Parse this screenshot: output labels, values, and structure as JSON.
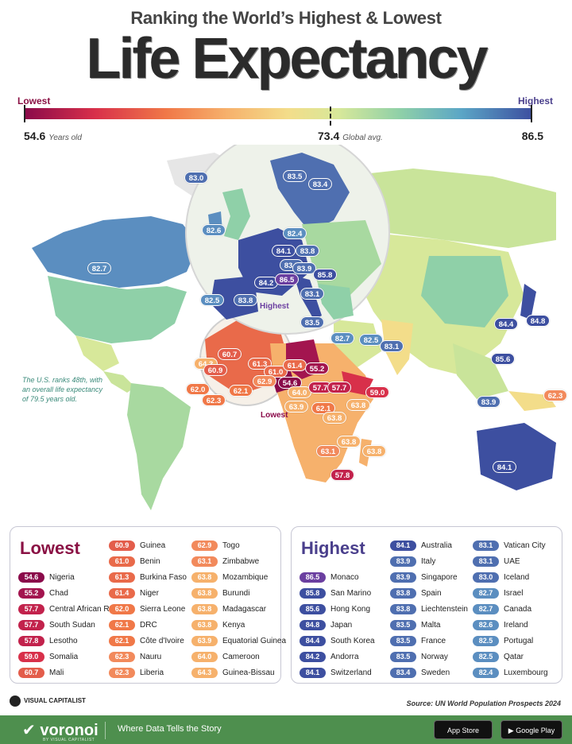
{
  "header": {
    "subtitle": "Ranking the World’s Highest & Lowest",
    "title": "Life Expectancy"
  },
  "scale": {
    "lowest_label": "Lowest",
    "highest_label": "Highest",
    "min_value": "54.6",
    "min_unit": "Years old",
    "avg_value": "73.4",
    "avg_unit": "Global avg.",
    "max_value": "86.5"
  },
  "map": {
    "us_note": "The U.S. ranks 48th, with an overall life expectancy of 79.5 years old.",
    "highest_callout": "Highest",
    "lowest_callout": "Lowest",
    "pins": [
      {
        "v": "83.0",
        "c": "#4f6fb0"
      },
      {
        "v": "83.5",
        "c": "#4f6fb0"
      },
      {
        "v": "83.4",
        "c": "#4f6fb0"
      },
      {
        "v": "82.6",
        "c": "#5b8ec0"
      },
      {
        "v": "82.4",
        "c": "#5b8ec0"
      },
      {
        "v": "84.1",
        "c": "#3d4fa0"
      },
      {
        "v": "83.8",
        "c": "#4f6fb0"
      },
      {
        "v": "83.5",
        "c": "#4f6fb0"
      },
      {
        "v": "83.9",
        "c": "#4f6fb0"
      },
      {
        "v": "85.8",
        "c": "#3d4fa0"
      },
      {
        "v": "84.2",
        "c": "#3d4fa0"
      },
      {
        "v": "86.5",
        "c": "#6b3fa0"
      },
      {
        "v": "83.1",
        "c": "#4f6fb0"
      },
      {
        "v": "82.5",
        "c": "#5b8ec0"
      },
      {
        "v": "83.8",
        "c": "#4f6fb0"
      },
      {
        "v": "82.7",
        "c": "#5b8ec0"
      },
      {
        "v": "83.5",
        "c": "#4f6fb0"
      },
      {
        "v": "82.7",
        "c": "#5b8ec0"
      },
      {
        "v": "82.5",
        "c": "#5b8ec0"
      },
      {
        "v": "83.1",
        "c": "#4f6fb0"
      },
      {
        "v": "84.4",
        "c": "#3d4fa0"
      },
      {
        "v": "84.8",
        "c": "#3d4fa0"
      },
      {
        "v": "85.6",
        "c": "#3d4fa0"
      },
      {
        "v": "83.9",
        "c": "#4f6fb0"
      },
      {
        "v": "84.1",
        "c": "#3d4fa0"
      },
      {
        "v": "62.3",
        "c": "#f28a5c"
      },
      {
        "v": "64.3",
        "c": "#f6b16c"
      },
      {
        "v": "60.7",
        "c": "#e35d4b"
      },
      {
        "v": "60.9",
        "c": "#e35d4b"
      },
      {
        "v": "62.0",
        "c": "#f07848"
      },
      {
        "v": "62.3",
        "c": "#f07848"
      },
      {
        "v": "61.3",
        "c": "#e96a4a"
      },
      {
        "v": "61.0",
        "c": "#e96a4a"
      },
      {
        "v": "62.1",
        "c": "#f07848"
      },
      {
        "v": "62.9",
        "c": "#f28a5c"
      },
      {
        "v": "61.4",
        "c": "#e96a4a"
      },
      {
        "v": "55.2",
        "c": "#a3154f"
      },
      {
        "v": "54.6",
        "c": "#8a0a4a"
      },
      {
        "v": "64.0",
        "c": "#f6b16c"
      },
      {
        "v": "57.7",
        "c": "#c2224c"
      },
      {
        "v": "57.7",
        "c": "#c2224c"
      },
      {
        "v": "59.0",
        "c": "#d8304a"
      },
      {
        "v": "63.9",
        "c": "#f6b16c"
      },
      {
        "v": "62.1",
        "c": "#f07848"
      },
      {
        "v": "63.8",
        "c": "#f6b16c"
      },
      {
        "v": "63.8",
        "c": "#f6b16c"
      },
      {
        "v": "63.8",
        "c": "#f6b16c"
      },
      {
        "v": "63.1",
        "c": "#f28a5c"
      },
      {
        "v": "63.8",
        "c": "#f6b16c"
      },
      {
        "v": "57.8",
        "c": "#c2224c"
      }
    ]
  },
  "lowest": {
    "title": "Lowest",
    "items": [
      {
        "v": "54.6",
        "n": "Nigeria",
        "c": "#8a0a4a"
      },
      {
        "v": "55.2",
        "n": "Chad",
        "c": "#a3154f"
      },
      {
        "v": "57.7",
        "n": "Central African Rep",
        "c": "#c2224c"
      },
      {
        "v": "57.7",
        "n": "South Sudan",
        "c": "#c2224c"
      },
      {
        "v": "57.8",
        "n": "Lesotho",
        "c": "#c2224c"
      },
      {
        "v": "59.0",
        "n": "Somalia",
        "c": "#d8304a"
      },
      {
        "v": "60.7",
        "n": "Mali",
        "c": "#e35d4b"
      },
      {
        "v": "60.9",
        "n": "Guinea",
        "c": "#e35d4b"
      },
      {
        "v": "61.0",
        "n": "Benin",
        "c": "#e96a4a"
      },
      {
        "v": "61.3",
        "n": "Burkina Faso",
        "c": "#e96a4a"
      },
      {
        "v": "61.4",
        "n": "Niger",
        "c": "#e96a4a"
      },
      {
        "v": "62.0",
        "n": "Sierra Leone",
        "c": "#f07848"
      },
      {
        "v": "62.1",
        "n": "DRC",
        "c": "#f07848"
      },
      {
        "v": "62.1",
        "n": "Côte d'Ivoire",
        "c": "#f07848"
      },
      {
        "v": "62.3",
        "n": "Nauru",
        "c": "#f28a5c"
      },
      {
        "v": "62.3",
        "n": "Liberia",
        "c": "#f28a5c"
      },
      {
        "v": "62.9",
        "n": "Togo",
        "c": "#f28a5c"
      },
      {
        "v": "63.1",
        "n": "Zimbabwe",
        "c": "#f28a5c"
      },
      {
        "v": "63.8",
        "n": "Mozambique",
        "c": "#f6b16c"
      },
      {
        "v": "63.8",
        "n": "Burundi",
        "c": "#f6b16c"
      },
      {
        "v": "63.8",
        "n": "Madagascar",
        "c": "#f6b16c"
      },
      {
        "v": "63.8",
        "n": "Kenya",
        "c": "#f6b16c"
      },
      {
        "v": "63.9",
        "n": "Equatorial Guinea",
        "c": "#f6b16c"
      },
      {
        "v": "64.0",
        "n": "Cameroon",
        "c": "#f6b16c"
      },
      {
        "v": "64.3",
        "n": "Guinea-Bissau",
        "c": "#f6b16c"
      }
    ]
  },
  "highest": {
    "title": "Highest",
    "items": [
      {
        "v": "86.5",
        "n": "Monaco",
        "c": "#6b3fa0"
      },
      {
        "v": "85.8",
        "n": "San Marino",
        "c": "#3d4fa0"
      },
      {
        "v": "85.6",
        "n": "Hong Kong",
        "c": "#3d4fa0"
      },
      {
        "v": "84.8",
        "n": "Japan",
        "c": "#3d4fa0"
      },
      {
        "v": "84.4",
        "n": "South Korea",
        "c": "#3d4fa0"
      },
      {
        "v": "84.2",
        "n": "Andorra",
        "c": "#3d4fa0"
      },
      {
        "v": "84.1",
        "n": "Switzerland",
        "c": "#3d4fa0"
      },
      {
        "v": "84.1",
        "n": "Australia",
        "c": "#3d4fa0"
      },
      {
        "v": "83.9",
        "n": "Italy",
        "c": "#4f6fb0"
      },
      {
        "v": "83.9",
        "n": "Singapore",
        "c": "#4f6fb0"
      },
      {
        "v": "83.8",
        "n": "Spain",
        "c": "#4f6fb0"
      },
      {
        "v": "83.8",
        "n": "Liechtenstein",
        "c": "#4f6fb0"
      },
      {
        "v": "83.5",
        "n": "Malta",
        "c": "#4f6fb0"
      },
      {
        "v": "83.5",
        "n": "France",
        "c": "#4f6fb0"
      },
      {
        "v": "83.5",
        "n": "Norway",
        "c": "#4f6fb0"
      },
      {
        "v": "83.4",
        "n": "Sweden",
        "c": "#4f6fb0"
      },
      {
        "v": "83.1",
        "n": "Vatican City",
        "c": "#4f6fb0"
      },
      {
        "v": "83.1",
        "n": "UAE",
        "c": "#4f6fb0"
      },
      {
        "v": "83.0",
        "n": "Iceland",
        "c": "#4f6fb0"
      },
      {
        "v": "82.7",
        "n": "Israel",
        "c": "#5b8ec0"
      },
      {
        "v": "82.7",
        "n": "Canada",
        "c": "#5b8ec0"
      },
      {
        "v": "82.6",
        "n": "Ireland",
        "c": "#5b8ec0"
      },
      {
        "v": "82.5",
        "n": "Portugal",
        "c": "#5b8ec0"
      },
      {
        "v": "82.5",
        "n": "Qatar",
        "c": "#5b8ec0"
      },
      {
        "v": "82.4",
        "n": "Luxembourg",
        "c": "#5b8ec0"
      }
    ]
  },
  "footer": {
    "vc_logo": "VISUAL CAPITALIST",
    "source": "Source: UN World Population Prospects 2024",
    "brand": "voronoi",
    "brand_sub": "BY VISUAL CAPITALIST",
    "tagline": "Where Data Tells the Story",
    "app_store": "App Store",
    "google_play": "Google Play"
  }
}
